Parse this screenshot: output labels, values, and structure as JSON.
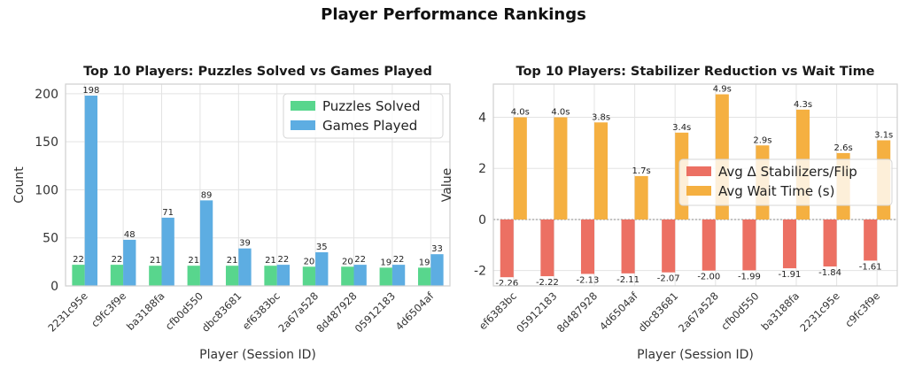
{
  "figure": {
    "title": "Player Performance Rankings"
  },
  "chart_data": [
    {
      "type": "bar",
      "title": "Top 10 Players: Puzzles Solved vs Games Played",
      "xlabel": "Player (Session ID)",
      "ylabel": "Count",
      "ylim": [
        0,
        210
      ],
      "yticks": [
        0,
        50,
        100,
        150,
        200
      ],
      "grid": true,
      "legend": "top-right",
      "categories": [
        "2231c95e",
        "c9fc3f9e",
        "ba3188fa",
        "cfb0d550",
        "dbc83681",
        "ef6383bc",
        "2a67a528",
        "8d487928",
        "05912183",
        "4d6504af"
      ],
      "series": [
        {
          "name": "Puzzles Solved",
          "color": "#58d68d",
          "values": [
            22,
            22,
            21,
            21,
            21,
            21,
            20,
            20,
            19,
            19
          ],
          "labels": [
            "22",
            "22",
            "21",
            "21",
            "21",
            "21",
            "20",
            "20",
            "19",
            "19"
          ]
        },
        {
          "name": "Games Played",
          "color": "#5dade2",
          "values": [
            198,
            48,
            71,
            89,
            39,
            22,
            35,
            22,
            22,
            33
          ],
          "labels": [
            "198",
            "48",
            "71",
            "89",
            "39",
            "22",
            "35",
            "22",
            "22",
            "33"
          ]
        }
      ]
    },
    {
      "type": "bar",
      "title": "Top 10 Players: Stabilizer Reduction vs Wait Time",
      "xlabel": "Player (Session ID)",
      "ylabel": "Value",
      "ylim": [
        -2.6,
        5.3
      ],
      "yticks": [
        -2,
        0,
        2,
        4
      ],
      "grid": true,
      "zero_line": "dashed",
      "legend": "center-right",
      "categories": [
        "ef6383bc",
        "05912183",
        "8d487928",
        "4d6504af",
        "dbc83681",
        "2a67a528",
        "cfb0d550",
        "ba3188fa",
        "2231c95e",
        "c9fc3f9e"
      ],
      "series": [
        {
          "name": "Avg Δ Stabilizers/Flip",
          "color": "#ec7063",
          "values": [
            -2.26,
            -2.22,
            -2.13,
            -2.11,
            -2.07,
            -2.0,
            -1.99,
            -1.91,
            -1.84,
            -1.61
          ],
          "labels": [
            "-2.26",
            "-2.22",
            "-2.13",
            "-2.11",
            "-2.07",
            "-2.00",
            "-1.99",
            "-1.91",
            "-1.84",
            "-1.61"
          ]
        },
        {
          "name": "Avg Wait Time (s)",
          "color": "#f5b041",
          "values": [
            4.0,
            4.0,
            3.8,
            1.7,
            3.4,
            4.9,
            2.9,
            4.3,
            2.6,
            3.1
          ],
          "labels": [
            "4.0s",
            "4.0s",
            "3.8s",
            "1.7s",
            "3.4s",
            "4.9s",
            "2.9s",
            "4.3s",
            "2.6s",
            "3.1s"
          ]
        }
      ]
    }
  ]
}
